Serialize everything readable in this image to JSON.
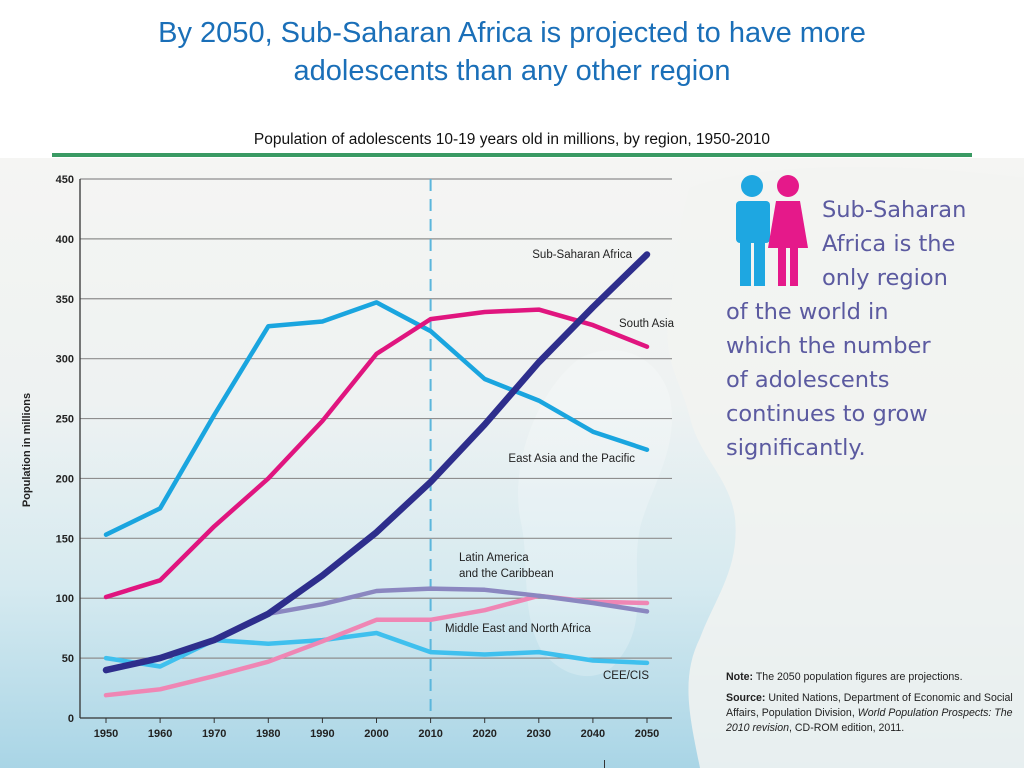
{
  "title": "By 2050, Sub-Saharan Africa is projected to have more adolescents than any other region",
  "title_lines": [
    "By 2050, Sub-Saharan Africa is projected to have more",
    "adolescents than any other region"
  ],
  "subtitle": "Population of adolescents 10-19 years old in millions, by region, 1950-2010",
  "callout": {
    "lines_indented": [
      "Sub-Saharan",
      "Africa is the",
      "only region"
    ],
    "lines_full": [
      "of the world in",
      "which the number",
      "of adolescents",
      "continues to grow",
      "significantly."
    ],
    "icons": [
      "male-figure-icon",
      "female-figure-icon"
    ],
    "colors": {
      "male": "#1ea7e1",
      "female": "#e5198a",
      "text": "#5b5aa0"
    }
  },
  "notes": {
    "note_label": "Note:",
    "note_text": " The 2050 population figures are projections.",
    "source_label": "Source:",
    "source_text_1": " United Nations, Department of Economic and Social Affairs, Population Division, ",
    "source_italic": "World Population Prospects: The 2010 revision",
    "source_text_2": ", CD-ROM edition, 2011."
  },
  "chart_data": {
    "type": "line",
    "title": "Population of adolescents 10-19 years old in millions, by region, 1950-2010",
    "xlabel": "",
    "ylabel": "Population in millions",
    "x": [
      1950,
      1960,
      1970,
      1980,
      1990,
      2000,
      2010,
      2020,
      2030,
      2040,
      2050
    ],
    "x_tick_labels": [
      "1950",
      "1960",
      "1970",
      "1980",
      "1990",
      "2000",
      "2010",
      "2020",
      "2030",
      "2040",
      "2050"
    ],
    "ylim": [
      0,
      450
    ],
    "y_ticks": [
      0,
      50,
      100,
      150,
      200,
      250,
      300,
      350,
      400,
      450
    ],
    "y_tick_labels": [
      "0",
      "50",
      "100",
      "150",
      "200",
      "250",
      "300",
      "350",
      "400",
      "450"
    ],
    "grid": "horizontal",
    "reference_line": {
      "x": 2010,
      "style": "dashed",
      "color": "#5bb6dc"
    },
    "series": [
      {
        "name": "East Asia and the Pacific",
        "label_lines": [
          "East Asia and the Pacific"
        ],
        "color": "#1aa5df",
        "width": "normal",
        "values": [
          153,
          175,
          253,
          327,
          331,
          347,
          323,
          283,
          265,
          239,
          224
        ]
      },
      {
        "name": "South Asia",
        "label_lines": [
          "South Asia"
        ],
        "color": "#e0157f",
        "width": "normal",
        "values": [
          101,
          115,
          160,
          200,
          248,
          304,
          333,
          339,
          341,
          328,
          310
        ]
      },
      {
        "name": "CEE/CIS",
        "label_lines": [
          "CEE/CIS"
        ],
        "color": "#3fc0ee",
        "width": "normal",
        "values": [
          50,
          43,
          65,
          62,
          65,
          71,
          55,
          53,
          55,
          48,
          46
        ]
      },
      {
        "name": "Middle East and North Africa",
        "label_lines": [
          "Middle East and North Africa"
        ],
        "color": "#ef86b4",
        "width": "normal",
        "values": [
          19,
          24,
          35,
          47,
          64,
          82,
          82,
          90,
          102,
          97,
          96
        ]
      },
      {
        "name": "Latin America and the Caribbean",
        "label_lines": [
          "Latin America",
          "and the Caribbean"
        ],
        "color": "#8b87c0",
        "width": "normal",
        "values": [
          40,
          50,
          65,
          87,
          95,
          106,
          108,
          107,
          102,
          96,
          89
        ]
      },
      {
        "name": "Sub-Saharan Africa",
        "label_lines": [
          "Sub-Saharan Africa"
        ],
        "color": "#2e2e8c",
        "width": "thick",
        "values": [
          40,
          50,
          65,
          87,
          119,
          155,
          197,
          245,
          297,
          343,
          387
        ]
      }
    ]
  }
}
